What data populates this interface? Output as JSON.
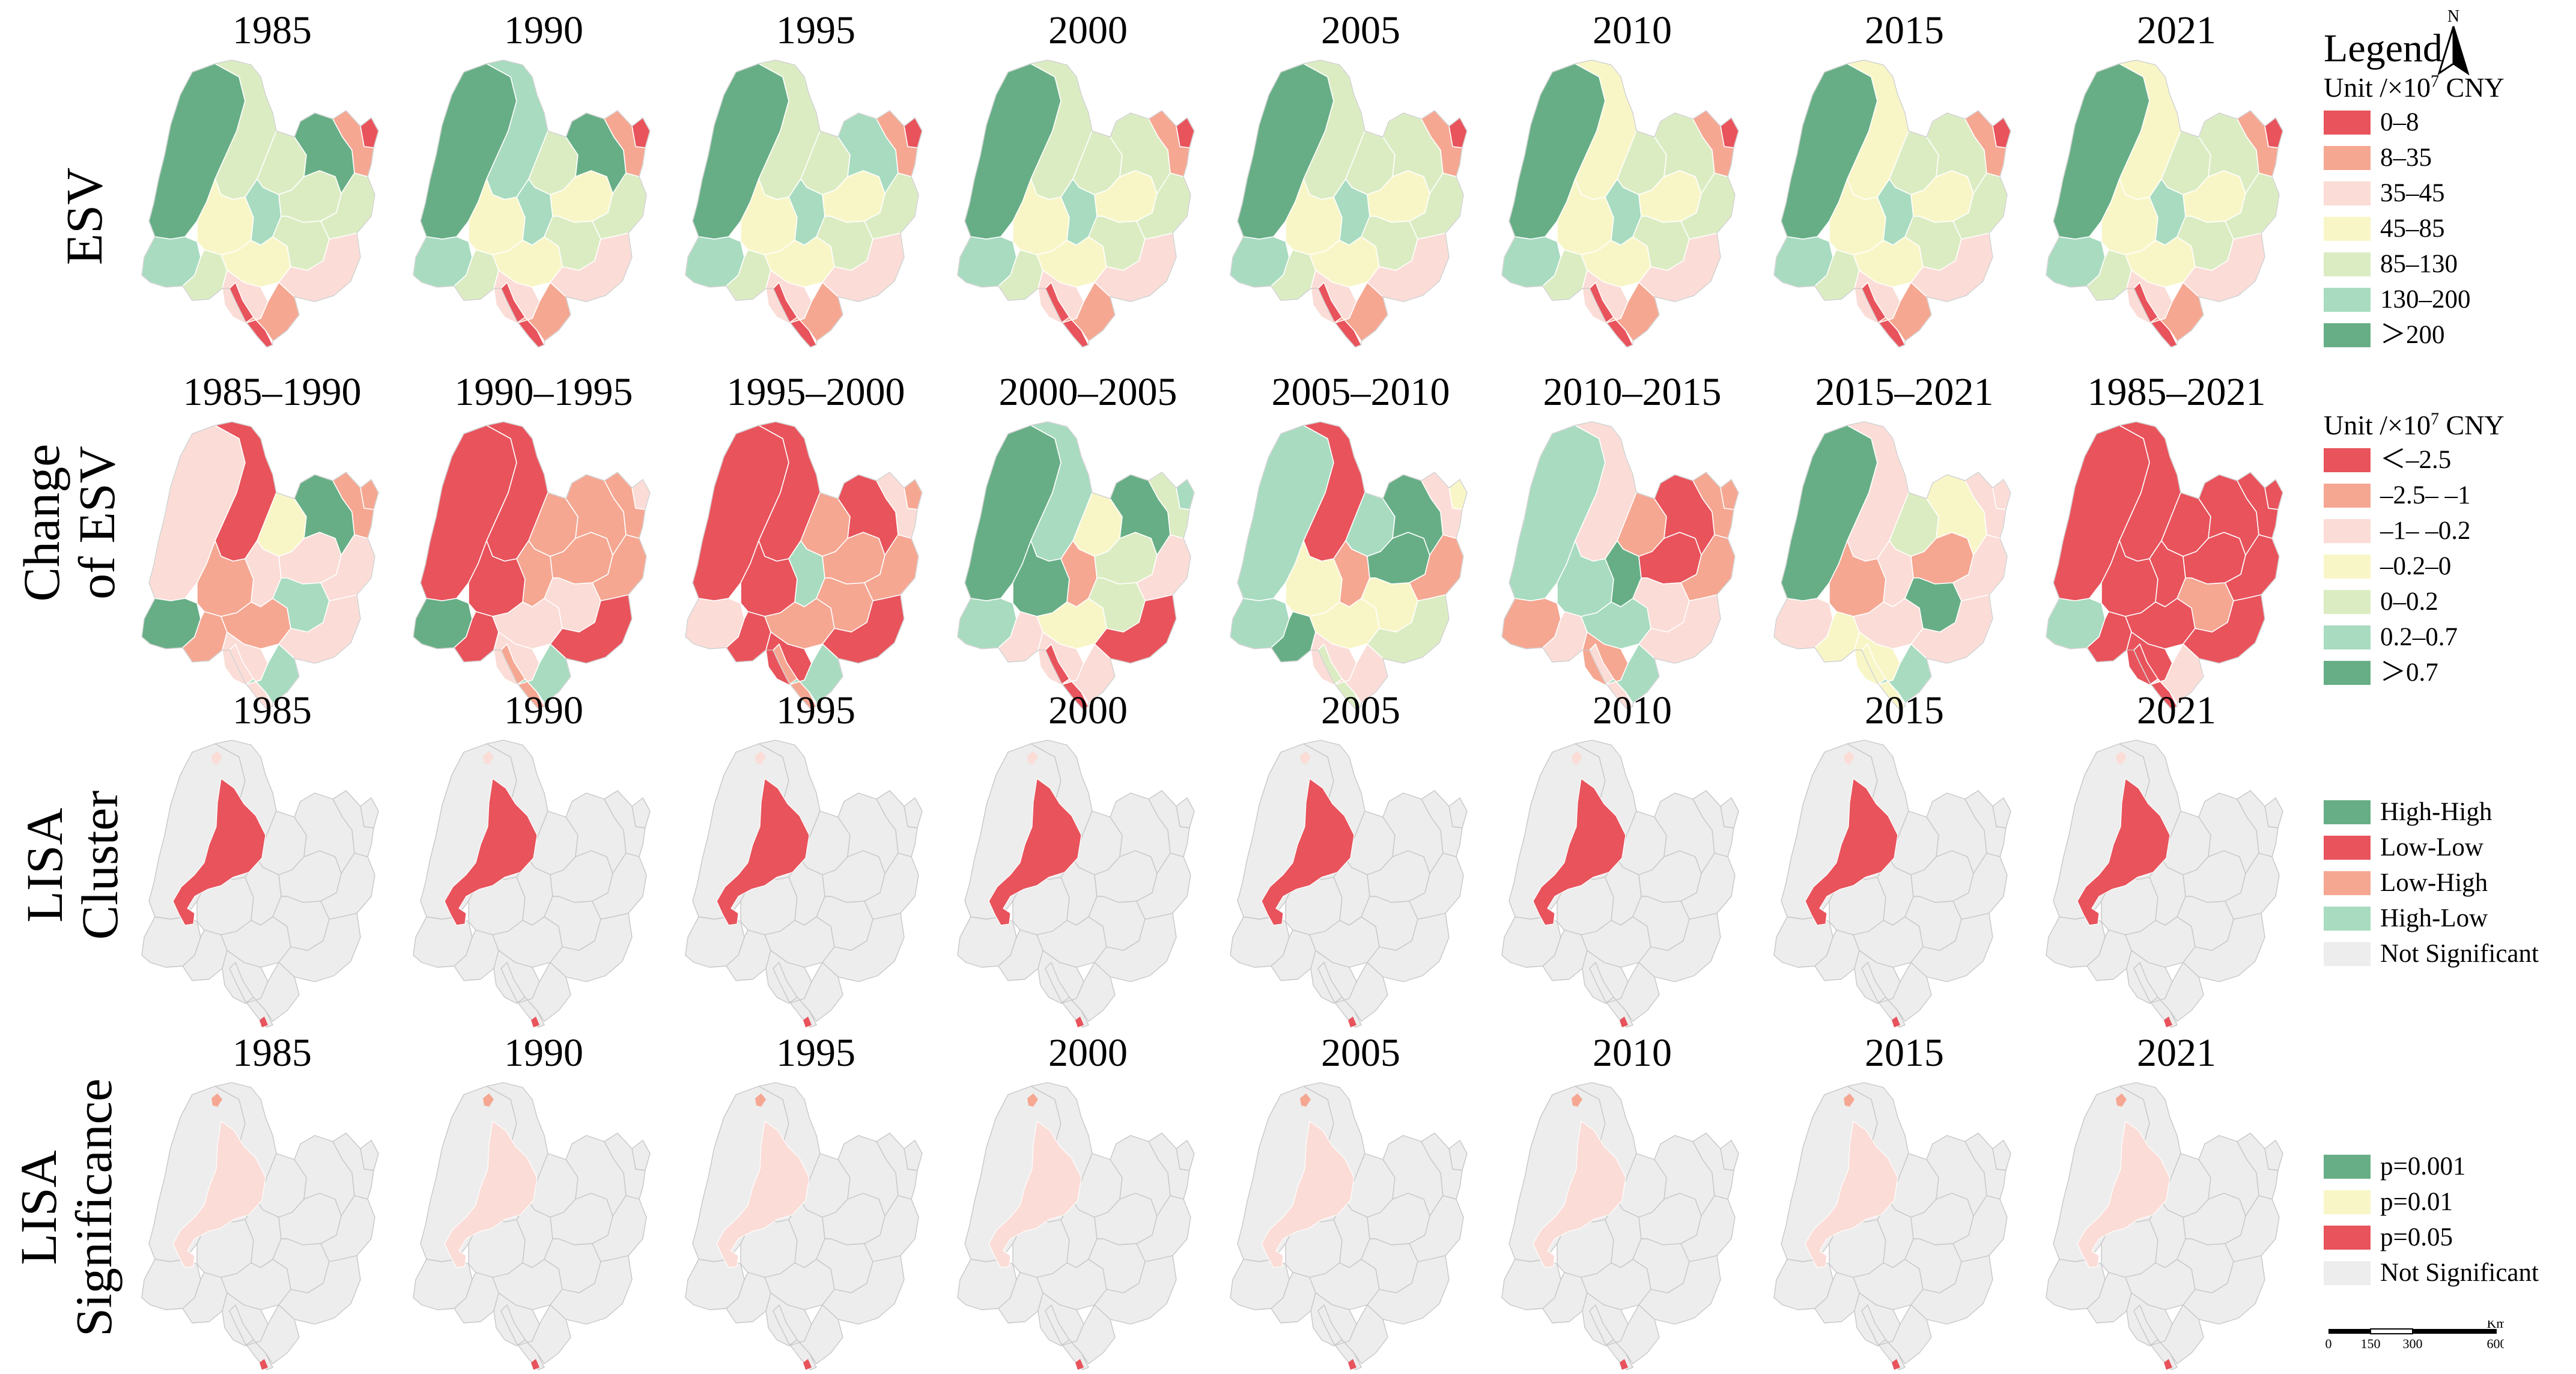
{
  "row_labels": {
    "esv": [
      "ESV"
    ],
    "change": [
      "Change",
      "of ESV"
    ],
    "cluster": [
      "LISA",
      "Cluster"
    ],
    "significance": [
      "LISA",
      "Significance"
    ]
  },
  "rows": [
    {
      "key": "esv",
      "titles": [
        "1985",
        "1990",
        "1995",
        "2000",
        "2005",
        "2010",
        "2015",
        "2021"
      ],
      "panels": [
        {
          "r1": "c7",
          "r2": "c5",
          "r3": "c6",
          "r4": "c4",
          "r5": "c5",
          "r6": "c5",
          "r7": "c6",
          "r8": "c4",
          "r9": "c3",
          "r10": "c5",
          "r11": "c7",
          "r12": "c5",
          "r13": "c5",
          "r14": "c3",
          "r15": "c1",
          "r16": "c2",
          "r17": "c1",
          "r18": "c2"
        },
        {
          "r1": "c7",
          "r2": "c6",
          "r3": "c6",
          "r4": "c4",
          "r5": "c5",
          "r6": "c5",
          "r7": "c6",
          "r8": "c4",
          "r9": "c3",
          "r10": "c4",
          "r11": "c7",
          "r12": "c5",
          "r13": "c5",
          "r14": "c3",
          "r15": "c1",
          "r16": "c2",
          "r17": "c1",
          "r18": "c2"
        },
        {
          "r1": "c7",
          "r2": "c5",
          "r3": "c6",
          "r4": "c4",
          "r5": "c5",
          "r6": "c5",
          "r7": "c6",
          "r8": "c4",
          "r9": "c3",
          "r10": "c4",
          "r11": "c6",
          "r12": "c5",
          "r13": "c5",
          "r14": "c3",
          "r15": "c1",
          "r16": "c2",
          "r17": "c1",
          "r18": "c2"
        },
        {
          "r1": "c7",
          "r2": "c5",
          "r3": "c6",
          "r4": "c4",
          "r5": "c5",
          "r6": "c5",
          "r7": "c6",
          "r8": "c4",
          "r9": "c3",
          "r10": "c4",
          "r11": "c5",
          "r12": "c5",
          "r13": "c5",
          "r14": "c3",
          "r15": "c1",
          "r16": "c2",
          "r17": "c1",
          "r18": "c2"
        },
        {
          "r1": "c7",
          "r2": "c5",
          "r3": "c6",
          "r4": "c4",
          "r5": "c5",
          "r6": "c5",
          "r7": "c6",
          "r8": "c4",
          "r9": "c3",
          "r10": "c4",
          "r11": "c5",
          "r12": "c5",
          "r13": "c5",
          "r14": "c3",
          "r15": "c1",
          "r16": "c2",
          "r17": "c1",
          "r18": "c2"
        },
        {
          "r1": "c7",
          "r2": "c4",
          "r3": "c6",
          "r4": "c4",
          "r5": "c5",
          "r6": "c5",
          "r7": "c6",
          "r8": "c4",
          "r9": "c3",
          "r10": "c4",
          "r11": "c5",
          "r12": "c5",
          "r13": "c5",
          "r14": "c3",
          "r15": "c1",
          "r16": "c2",
          "r17": "c1",
          "r18": "c2"
        },
        {
          "r1": "c7",
          "r2": "c4",
          "r3": "c6",
          "r4": "c4",
          "r5": "c5",
          "r6": "c5",
          "r7": "c6",
          "r8": "c4",
          "r9": "c3",
          "r10": "c4",
          "r11": "c5",
          "r12": "c5",
          "r13": "c5",
          "r14": "c3",
          "r15": "c1",
          "r16": "c2",
          "r17": "c1",
          "r18": "c2"
        },
        {
          "r1": "c7",
          "r2": "c4",
          "r3": "c6",
          "r4": "c4",
          "r5": "c5",
          "r6": "c5",
          "r7": "c6",
          "r8": "c4",
          "r9": "c3",
          "r10": "c4",
          "r11": "c5",
          "r12": "c5",
          "r13": "c5",
          "r14": "c3",
          "r15": "c1",
          "r16": "c2",
          "r17": "c1",
          "r18": "c2"
        }
      ]
    },
    {
      "key": "change",
      "titles": [
        "1985–1990",
        "1990–1995",
        "1995–2000",
        "2000–2005",
        "2005–2010",
        "2010–2015",
        "2015–2021",
        "1985–2021"
      ],
      "panels": [
        {
          "r1": "c3",
          "r2": "c1",
          "r3": "c7",
          "r4": "c2",
          "r5": "c2",
          "r6": "c4",
          "r7": "c3",
          "r8": "c2",
          "r9": "c3",
          "r10": "c3",
          "r11": "c7",
          "r12": "c6",
          "r13": "c3",
          "r14": "c3",
          "r15": "c2",
          "r16": "c2",
          "r17": "c3",
          "r18": "c6"
        },
        {
          "r1": "c1",
          "r2": "c1",
          "r3": "c7",
          "r4": "c1",
          "r5": "c1",
          "r6": "c2",
          "r7": "c2",
          "r8": "c3",
          "r9": "c3",
          "r10": "c2",
          "r11": "c2",
          "r12": "c3",
          "r13": "c2",
          "r14": "c1",
          "r15": "c3",
          "r16": "c2",
          "r17": "c2",
          "r18": "c6"
        },
        {
          "r1": "c1",
          "r2": "c1",
          "r3": "c3",
          "r4": "c1",
          "r5": "c1",
          "r6": "c2",
          "r7": "c6",
          "r8": "c2",
          "r9": "c1",
          "r10": "c2",
          "r11": "c1",
          "r12": "c2",
          "r13": "c2",
          "r14": "c1",
          "r15": "c2",
          "r16": "c3",
          "r17": "c2",
          "r18": "c6"
        },
        {
          "r1": "c7",
          "r2": "c6",
          "r3": "c6",
          "r4": "c7",
          "r5": "c3",
          "r6": "c4",
          "r7": "c2",
          "r8": "c4",
          "r9": "c3",
          "r10": "c5",
          "r11": "c7",
          "r12": "c5",
          "r13": "c3",
          "r14": "c1",
          "r15": "c6",
          "r16": "c5",
          "r17": "c1",
          "r18": "c3"
        },
        {
          "r1": "c6",
          "r2": "c1",
          "r3": "c6",
          "r4": "c4",
          "r5": "c7",
          "r6": "c6",
          "r7": "c2",
          "r8": "c4",
          "r9": "c3",
          "r10": "c7",
          "r11": "c7",
          "r12": "c4",
          "r13": "c2",
          "r14": "c5",
          "r15": "c4",
          "r16": "c3",
          "r17": "c5",
          "r18": "c3"
        },
        {
          "r1": "c6",
          "r2": "c3",
          "r3": "c2",
          "r4": "c6",
          "r5": "c3",
          "r6": "c2",
          "r7": "c7",
          "r8": "c6",
          "r9": "c2",
          "r10": "c1",
          "r11": "c1",
          "r12": "c3",
          "r13": "c2",
          "r14": "c3",
          "r15": "c2",
          "r16": "c2",
          "r17": "c3",
          "r18": "c6"
        },
        {
          "r1": "c7",
          "r2": "c3",
          "r3": "c3",
          "r4": "c2",
          "r5": "c4",
          "r6": "c5",
          "r7": "c3",
          "r8": "c3",
          "r9": "c4",
          "r10": "c2",
          "r11": "c4",
          "r12": "c7",
          "r13": "c3",
          "r14": "c3",
          "r15": "c3",
          "r16": "c3",
          "r17": "c4",
          "r18": "c6"
        },
        {
          "r1": "c1",
          "r2": "c1",
          "r3": "c6",
          "r4": "c1",
          "r5": "c1",
          "r6": "c1",
          "r7": "c1",
          "r8": "c1",
          "r9": "c1",
          "r10": "c1",
          "r11": "c1",
          "r12": "c2",
          "r13": "c1",
          "r14": "c1",
          "r15": "c1",
          "r16": "c1",
          "r17": "c1",
          "r18": "c3"
        }
      ]
    },
    {
      "key": "cluster",
      "titles": [
        "1985",
        "1990",
        "1995",
        "2000",
        "2005",
        "2010",
        "2015",
        "2021"
      ],
      "highlight_color": "c1",
      "tip_color": "c3",
      "panels": [
        {},
        {},
        {},
        {},
        {},
        {},
        {},
        {}
      ]
    },
    {
      "key": "significance",
      "titles": [
        "1985",
        "1990",
        "1995",
        "2000",
        "2005",
        "2010",
        "2015",
        "2021"
      ],
      "highlight_color": "c3",
      "tip_color": "c2",
      "panels": [
        {},
        {},
        {},
        {},
        {},
        {},
        {},
        {}
      ]
    }
  ],
  "legends": {
    "esv": {
      "heading": "Legend",
      "unit_text": "Unit /×10",
      "unit_exp": "7",
      "unit_tail": " CNY",
      "items": [
        {
          "label": "0–8",
          "color": "#e8535c"
        },
        {
          "label": "8–35",
          "color": "#f5a792"
        },
        {
          "label": "35–45",
          "color": "#fbdcd6"
        },
        {
          "label": "45–85",
          "color": "#f8f6c7"
        },
        {
          "label": "85–130",
          "color": "#dbecc2"
        },
        {
          "label": "130–200",
          "color": "#a8dbc0"
        },
        {
          "label": "＞200",
          "color": "#67ae86"
        }
      ]
    },
    "change": {
      "unit_text": "Unit /×10",
      "unit_exp": "7",
      "unit_tail": " CNY",
      "items": [
        {
          "label": "＜–2.5",
          "color": "#e8535c"
        },
        {
          "label": "–2.5– –1",
          "color": "#f5a792"
        },
        {
          "label": "–1– –0.2",
          "color": "#fbdcd6"
        },
        {
          "label": "–0.2–0",
          "color": "#f8f6c7"
        },
        {
          "label": "0–0.2",
          "color": "#dbecc2"
        },
        {
          "label": "0.2–0.7",
          "color": "#a8dbc0"
        },
        {
          "label": "＞0.7",
          "color": "#67ae86"
        }
      ]
    },
    "cluster": {
      "items": [
        {
          "label": "High-High",
          "color": "#67ae86"
        },
        {
          "label": "Low-Low",
          "color": "#e8535c"
        },
        {
          "label": "Low-High",
          "color": "#f5a792"
        },
        {
          "label": "High-Low",
          "color": "#a8dbc0"
        },
        {
          "label": "Not Significant",
          "color": "#ededed"
        }
      ]
    },
    "significance": {
      "items": [
        {
          "label": "p=0.001",
          "color": "#67ae86"
        },
        {
          "label": "p=0.01",
          "color": "#f8f6c7"
        },
        {
          "label": "p=0.05",
          "color": "#e8535c"
        },
        {
          "label": "Not Significant",
          "color": "#ededed"
        }
      ]
    }
  },
  "palette": {
    "c1": "#e8535c",
    "c2": "#f5a792",
    "c3": "#fbdcd6",
    "c4": "#f8f6c7",
    "c5": "#dbecc2",
    "c6": "#a8dbc0",
    "c7": "#67ae86",
    "grey": "#ededed"
  },
  "north_arrow": {
    "label": "N"
  },
  "scale_bar": {
    "ticks": [
      "0",
      "150",
      "300",
      "600"
    ],
    "unit": "Km"
  }
}
